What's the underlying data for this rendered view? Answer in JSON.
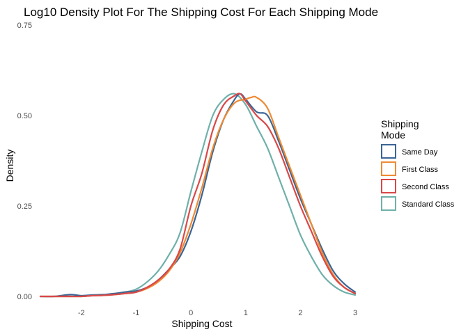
{
  "chart_data": {
    "type": "line",
    "title": "Log10 Density Plot For The Shipping Cost For Each Shipping Mode",
    "xlabel": "Shipping Cost",
    "ylabel": "Density",
    "xlim": [
      -2.8,
      3.0
    ],
    "ylim": [
      0,
      0.75
    ],
    "x_ticks": [
      -2,
      -1,
      0,
      1,
      2,
      3
    ],
    "x_tick_labels": [
      "-2",
      "-1",
      "0",
      "1",
      "2",
      "3"
    ],
    "y_ticks": [
      0,
      0.25,
      0.5,
      0.75
    ],
    "y_tick_labels": [
      "0.00",
      "0.25",
      "0.50",
      "0.75"
    ],
    "grid": false,
    "legend": {
      "title": [
        "Shipping",
        "Mode"
      ],
      "placement": "right"
    },
    "series": [
      {
        "name": "Same Day",
        "color": "#3b6594",
        "x": [
          -2.75,
          -2.5,
          -2.2,
          -2.0,
          -1.8,
          -1.6,
          -1.4,
          -1.2,
          -1.0,
          -0.8,
          -0.6,
          -0.4,
          -0.2,
          0.0,
          0.2,
          0.4,
          0.6,
          0.8,
          0.9,
          1.0,
          1.2,
          1.4,
          1.6,
          1.8,
          2.0,
          2.2,
          2.4,
          2.6,
          2.8,
          3.0
        ],
        "y": [
          0.0,
          0.0,
          0.005,
          0.002,
          0.004,
          0.005,
          0.008,
          0.012,
          0.015,
          0.025,
          0.045,
          0.075,
          0.11,
          0.18,
          0.28,
          0.4,
          0.49,
          0.545,
          0.56,
          0.545,
          0.51,
          0.5,
          0.43,
          0.35,
          0.27,
          0.2,
          0.13,
          0.07,
          0.035,
          0.012
        ]
      },
      {
        "name": "First Class",
        "color": "#ef8a33",
        "x": [
          -2.75,
          -2.5,
          -2.2,
          -2.0,
          -1.8,
          -1.6,
          -1.4,
          -1.2,
          -1.0,
          -0.8,
          -0.6,
          -0.4,
          -0.2,
          0.0,
          0.2,
          0.4,
          0.6,
          0.8,
          1.0,
          1.1,
          1.2,
          1.4,
          1.6,
          1.8,
          2.0,
          2.2,
          2.4,
          2.6,
          2.8,
          3.0
        ],
        "y": [
          0.0,
          0.0,
          0.0,
          0.0,
          0.002,
          0.003,
          0.005,
          0.008,
          0.012,
          0.022,
          0.04,
          0.07,
          0.12,
          0.2,
          0.3,
          0.41,
          0.49,
          0.535,
          0.545,
          0.55,
          0.55,
          0.52,
          0.44,
          0.36,
          0.28,
          0.2,
          0.12,
          0.06,
          0.025,
          0.008
        ]
      },
      {
        "name": "Second Class",
        "color": "#d94848",
        "x": [
          -2.75,
          -2.5,
          -2.2,
          -2.0,
          -1.8,
          -1.6,
          -1.4,
          -1.2,
          -1.0,
          -0.8,
          -0.6,
          -0.4,
          -0.2,
          0.0,
          0.2,
          0.4,
          0.6,
          0.8,
          0.9,
          1.0,
          1.2,
          1.4,
          1.6,
          1.8,
          2.0,
          2.2,
          2.4,
          2.6,
          2.8,
          3.0
        ],
        "y": [
          0.0,
          0.0,
          0.0,
          0.0,
          0.002,
          0.003,
          0.005,
          0.008,
          0.012,
          0.025,
          0.045,
          0.075,
          0.13,
          0.25,
          0.34,
          0.46,
          0.53,
          0.555,
          0.56,
          0.54,
          0.5,
          0.47,
          0.41,
          0.33,
          0.25,
          0.18,
          0.11,
          0.055,
          0.025,
          0.008
        ]
      },
      {
        "name": "Standard Class",
        "color": "#6fb0aa",
        "x": [
          -2.75,
          -2.5,
          -2.2,
          -2.0,
          -1.8,
          -1.6,
          -1.4,
          -1.2,
          -1.0,
          -0.8,
          -0.6,
          -0.4,
          -0.2,
          0.0,
          0.2,
          0.4,
          0.6,
          0.8,
          1.0,
          1.2,
          1.4,
          1.6,
          1.8,
          2.0,
          2.2,
          2.4,
          2.6,
          2.8,
          3.0
        ],
        "y": [
          0.0,
          0.0,
          0.0,
          0.0,
          0.002,
          0.004,
          0.007,
          0.012,
          0.02,
          0.04,
          0.07,
          0.115,
          0.175,
          0.29,
          0.4,
          0.5,
          0.545,
          0.56,
          0.53,
          0.47,
          0.41,
          0.33,
          0.25,
          0.17,
          0.11,
          0.06,
          0.03,
          0.012,
          0.004
        ]
      }
    ]
  }
}
